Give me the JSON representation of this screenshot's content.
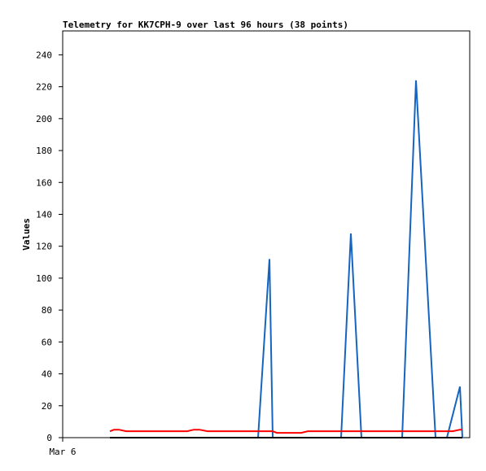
{
  "chart_data": {
    "type": "line",
    "title": "Telemetry for KK7CPH-9 over last 96 hours (38 points)",
    "y_label": "Values",
    "x": [
      11.6,
      12.6,
      13.8,
      15.6,
      18.6,
      21.6,
      24.6,
      27.6,
      30.6,
      32.2,
      33.6,
      35.6,
      38.6,
      41.6,
      44.6,
      48,
      50.8,
      51.6,
      52.6,
      54.6,
      56.6,
      58.6,
      60.2,
      62.6,
      63.6,
      65.6,
      68.4,
      70.8,
      73.4,
      76.6,
      80.6,
      83.4,
      86.8,
      91.6,
      94.4,
      95.8,
      97.6,
      98.2
    ],
    "series": [
      {
        "color": "#1565c0",
        "values": [
          0,
          0,
          0,
          0,
          0,
          0,
          0,
          0,
          0,
          0,
          0,
          0,
          0,
          0,
          0,
          0,
          112,
          0,
          0,
          0,
          0,
          0,
          0,
          0,
          0,
          0,
          0,
          128,
          0,
          0,
          0,
          0,
          224,
          0,
          0,
          14,
          32,
          0
        ]
      },
      {
        "color": "#ff0000",
        "values": [
          4,
          5,
          5,
          4,
          4,
          4,
          4,
          4,
          4,
          5,
          5,
          4,
          4,
          4,
          4,
          4,
          4,
          4,
          3,
          3,
          3,
          3,
          4,
          4,
          4,
          4,
          4,
          4,
          4,
          4,
          4,
          4,
          4,
          4,
          4,
          4,
          5,
          5
        ]
      },
      {
        "color": "#000000",
        "values": [
          0,
          0,
          0,
          0,
          0,
          0,
          0,
          0,
          0,
          0,
          0,
          0,
          0,
          0,
          0,
          0,
          0,
          0,
          0,
          0,
          0,
          0,
          0,
          0,
          0,
          0,
          0,
          0,
          0,
          0,
          0,
          0,
          0,
          0,
          0,
          0,
          0,
          0
        ]
      }
    ],
    "xlim": [
      0,
      100
    ],
    "xticks": [
      {
        "value": 0,
        "label": "Mar 6"
      }
    ],
    "ylim": [
      0,
      255
    ],
    "yticks": [
      0,
      20,
      40,
      60,
      80,
      100,
      120,
      140,
      160,
      180,
      200,
      220,
      240
    ],
    "grid": false
  }
}
